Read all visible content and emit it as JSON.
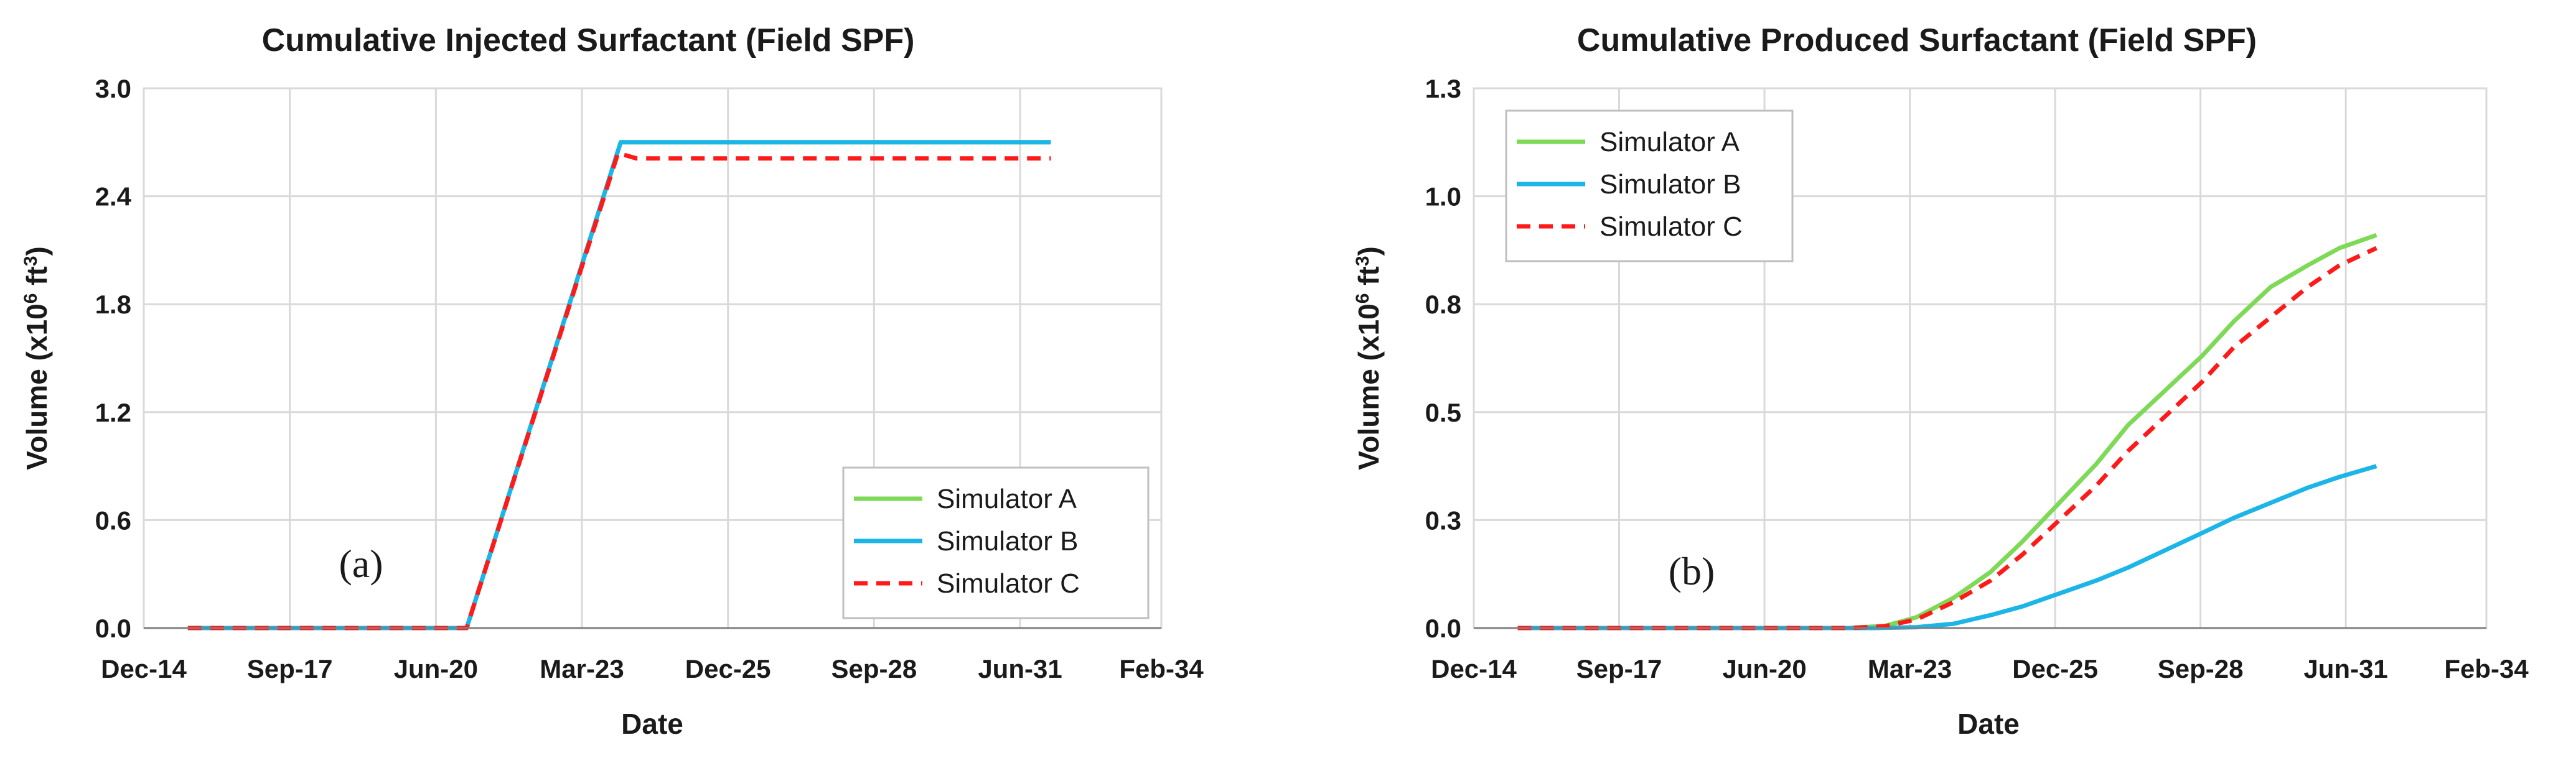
{
  "chart_data": [
    {
      "type": "line",
      "title": "Cumulative Injected Surfactant (Field SPF)",
      "xlabel": "Date",
      "ylabel_prefix": "Volume (x10",
      "ylabel_sup": "6",
      "ylabel_mid": " ft",
      "ylabel_sup2": "3",
      "ylabel_suffix": ")",
      "xlim": [
        2014.92,
        2034.08
      ],
      "ylim": [
        0,
        3.0
      ],
      "yticks": [
        0.0,
        0.6,
        1.2,
        1.8,
        2.4,
        3.0
      ],
      "ytick_labels": [
        "0.0",
        "0.6",
        "1.2",
        "1.8",
        "2.4",
        "3.0"
      ],
      "xticks": [
        2014.92,
        2017.67,
        2020.42,
        2023.17,
        2025.92,
        2028.67,
        2031.42,
        2034.08
      ],
      "xtick_labels": [
        "Dec-14",
        "Sep-17",
        "Jun-20",
        "Mar-23",
        "Dec-25",
        "Sep-28",
        "Jun-31",
        "Feb-34"
      ],
      "grid": true,
      "legend_position": "bottom-right",
      "annotation": "(a)",
      "series": [
        {
          "name": "Simulator A",
          "color": "#7ed957",
          "dash": "solid",
          "x": [
            2015.75,
            2021.0,
            2023.9,
            2032.0
          ],
          "y": [
            0.0,
            0.0,
            2.7,
            2.7
          ]
        },
        {
          "name": "Simulator B",
          "color": "#1cb5e8",
          "dash": "solid",
          "x": [
            2015.75,
            2021.0,
            2023.9,
            2032.0
          ],
          "y": [
            0.0,
            0.0,
            2.7,
            2.7
          ]
        },
        {
          "name": "Simulator C",
          "color": "#ff1a1a",
          "dash": "dashed",
          "x": [
            2015.75,
            2021.0,
            2023.85,
            2024.2,
            2032.0
          ],
          "y": [
            0.0,
            0.0,
            2.64,
            2.61,
            2.61
          ]
        }
      ]
    },
    {
      "type": "line",
      "title": "Cumulative Produced Surfactant (Field SPF)",
      "xlabel": "Date",
      "ylabel_prefix": "Volume (x10",
      "ylabel_sup": "6",
      "ylabel_mid": " ft",
      "ylabel_sup2": "3",
      "ylabel_suffix": ")",
      "xlim": [
        2014.92,
        2034.08
      ],
      "ylim": [
        0,
        1.25
      ],
      "yticks": [
        0.0,
        0.25,
        0.5,
        0.75,
        1.0,
        1.25
      ],
      "ytick_labels": [
        "0.0",
        "0.3",
        "0.5",
        "0.8",
        "1.0",
        "1.3"
      ],
      "xticks": [
        2014.92,
        2017.67,
        2020.42,
        2023.17,
        2025.92,
        2028.67,
        2031.42,
        2034.08
      ],
      "xtick_labels": [
        "Dec-14",
        "Sep-17",
        "Jun-20",
        "Mar-23",
        "Dec-25",
        "Sep-28",
        "Jun-31",
        "Feb-34"
      ],
      "grid": true,
      "legend_position": "top-left",
      "annotation": "(b)",
      "series": [
        {
          "name": "Simulator A",
          "color": "#7ed957",
          "dash": "solid",
          "x": [
            2015.75,
            2022.0,
            2022.7,
            2023.3,
            2024.0,
            2024.7,
            2025.3,
            2026.0,
            2026.7,
            2027.3,
            2028.0,
            2028.7,
            2029.3,
            2030.0,
            2030.7,
            2031.3,
            2032.0
          ],
          "y": [
            0.0,
            0.0,
            0.005,
            0.025,
            0.07,
            0.13,
            0.2,
            0.29,
            0.38,
            0.47,
            0.55,
            0.63,
            0.71,
            0.79,
            0.84,
            0.88,
            0.91
          ]
        },
        {
          "name": "Simulator B",
          "color": "#1cb5e8",
          "dash": "solid",
          "x": [
            2015.75,
            2022.5,
            2023.3,
            2024.0,
            2024.7,
            2025.3,
            2026.0,
            2026.7,
            2027.3,
            2028.0,
            2028.7,
            2029.3,
            2030.0,
            2030.7,
            2031.3,
            2032.0
          ],
          "y": [
            0.0,
            0.0,
            0.002,
            0.01,
            0.03,
            0.05,
            0.08,
            0.11,
            0.14,
            0.18,
            0.22,
            0.255,
            0.29,
            0.325,
            0.35,
            0.375
          ]
        },
        {
          "name": "Simulator C",
          "color": "#ff1a1a",
          "dash": "dashed",
          "x": [
            2015.75,
            2022.0,
            2022.7,
            2023.3,
            2024.0,
            2024.7,
            2025.3,
            2026.0,
            2026.7,
            2027.3,
            2028.0,
            2028.7,
            2029.3,
            2030.0,
            2030.7,
            2031.3,
            2032.0
          ],
          "y": [
            0.0,
            0.0,
            0.004,
            0.02,
            0.06,
            0.11,
            0.17,
            0.25,
            0.33,
            0.41,
            0.49,
            0.57,
            0.65,
            0.72,
            0.79,
            0.84,
            0.88
          ]
        }
      ]
    }
  ]
}
